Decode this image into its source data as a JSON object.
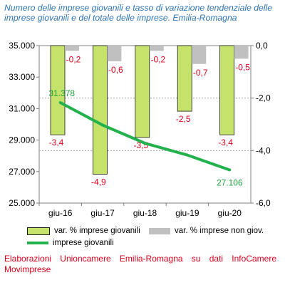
{
  "title": "Numero delle imprese giovanili e tasso di variazione tendenziale delle imprese giovanili e del totale delle imprese. Emilia-Romagna",
  "source": "Elaborazioni Unioncamere Emilia-Romagna su dati InfoCamere Movimprese",
  "colors": {
    "bar_young": "#c5e26b",
    "bar_young_stroke": "#1a1a1a",
    "bar_total": "#c0c0c0",
    "line": "#22b14c",
    "label_red": "#e0001b",
    "label_green": "#22a03c",
    "title": "#2e75b6",
    "ref_line": "#a0a0a0"
  },
  "chart_data": {
    "type": "bar",
    "categories": [
      "giu-16",
      "giu-17",
      "giu-18",
      "giu-19",
      "giu-20"
    ],
    "left_axis": {
      "min": 25000,
      "max": 35000,
      "ticks": [
        "25.000",
        "27.000",
        "29.000",
        "31.000",
        "33.000",
        "35.000"
      ]
    },
    "right_axis": {
      "min": -6.0,
      "max": 0.0,
      "ticks": [
        "-6,0",
        "-4,0",
        "-2,0",
        "0,0"
      ]
    },
    "series": [
      {
        "name": "var. % imprese giovanili",
        "axis": "right",
        "values": [
          -3.4,
          -4.9,
          -3.5,
          -2.5,
          -3.4
        ],
        "labels": [
          "-3,4",
          "-4,9",
          "-3,5",
          "-2,5",
          "-3,4"
        ]
      },
      {
        "name": "var. % imprese non giov.",
        "axis": "right",
        "values": [
          -0.2,
          -0.6,
          -0.2,
          -0.7,
          -0.5
        ],
        "labels": [
          "-0,2",
          "-0,6",
          "-0,2",
          "-0,7",
          "-0,5"
        ]
      },
      {
        "name": "imprese giovanili",
        "type": "line",
        "axis": "left",
        "values": [
          31378,
          29950,
          28800,
          28050,
          27106
        ],
        "labels": [
          "31.378",
          "",
          "",
          "",
          "27.106"
        ]
      }
    ],
    "reference_lines_right_axis": [
      -2.0,
      -4.0
    ],
    "legend": [
      "var. % imprese giovanili",
      "var. % imprese non giov.",
      "imprese giovanili"
    ]
  }
}
